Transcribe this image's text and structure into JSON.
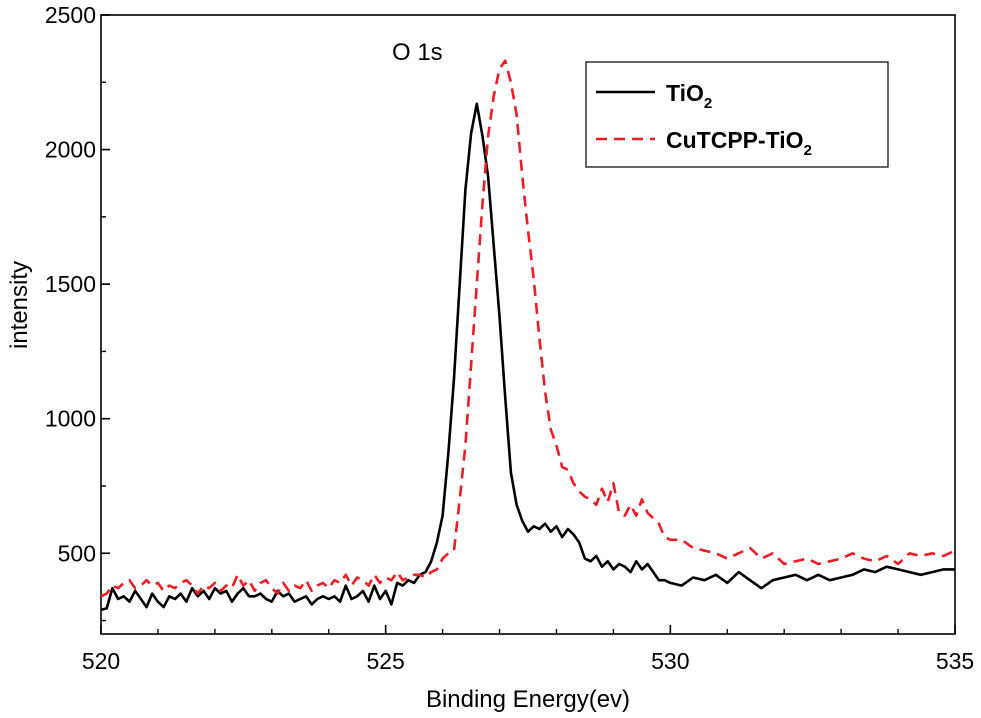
{
  "chart_data": {
    "type": "line",
    "title": "",
    "annotation": "O 1s",
    "xlabel": "Binding Energy(ev)",
    "ylabel": "intensity",
    "xlim": [
      520,
      535
    ],
    "ylim": [
      200,
      2500
    ],
    "xticks": [
      520,
      525,
      530,
      535
    ],
    "yticks": [
      500,
      1000,
      1500,
      2000,
      2500
    ],
    "legend_position": "top-right",
    "series": [
      {
        "name": "TiO2",
        "legend_main": "TiO",
        "legend_sub": "2",
        "color": "#000000",
        "dash": "solid",
        "x": [
          520.0,
          520.1,
          520.2,
          520.3,
          520.4,
          520.5,
          520.6,
          520.7,
          520.8,
          520.9,
          521.0,
          521.1,
          521.2,
          521.3,
          521.4,
          521.5,
          521.6,
          521.7,
          521.8,
          521.9,
          522.0,
          522.1,
          522.2,
          522.3,
          522.4,
          522.5,
          522.6,
          522.7,
          522.8,
          522.9,
          523.0,
          523.1,
          523.2,
          523.3,
          523.4,
          523.5,
          523.6,
          523.7,
          523.8,
          523.9,
          524.0,
          524.1,
          524.2,
          524.3,
          524.4,
          524.5,
          524.6,
          524.7,
          524.8,
          524.9,
          525.0,
          525.1,
          525.2,
          525.3,
          525.4,
          525.5,
          525.6,
          525.7,
          525.8,
          525.9,
          526.0,
          526.1,
          526.2,
          526.3,
          526.4,
          526.5,
          526.6,
          526.7,
          526.8,
          526.9,
          527.0,
          527.1,
          527.2,
          527.3,
          527.4,
          527.5,
          527.6,
          527.7,
          527.8,
          527.9,
          528.0,
          528.1,
          528.2,
          528.3,
          528.4,
          528.5,
          528.6,
          528.7,
          528.8,
          528.9,
          529.0,
          529.1,
          529.2,
          529.3,
          529.4,
          529.5,
          529.6,
          529.7,
          529.8,
          529.9,
          530.0,
          530.2,
          530.4,
          530.6,
          530.8,
          531.0,
          531.2,
          531.4,
          531.6,
          531.8,
          532.0,
          532.2,
          532.4,
          532.6,
          532.8,
          533.0,
          533.2,
          533.4,
          533.6,
          533.8,
          534.0,
          534.2,
          534.4,
          534.6,
          534.8,
          535.0
        ],
        "y": [
          290,
          295,
          370,
          330,
          340,
          320,
          360,
          330,
          300,
          350,
          320,
          300,
          340,
          330,
          350,
          320,
          370,
          340,
          360,
          330,
          370,
          350,
          360,
          320,
          350,
          370,
          340,
          340,
          350,
          330,
          320,
          360,
          340,
          350,
          320,
          330,
          340,
          310,
          330,
          340,
          330,
          340,
          320,
          380,
          330,
          340,
          360,
          320,
          380,
          330,
          360,
          310,
          390,
          380,
          400,
          390,
          420,
          430,
          470,
          540,
          640,
          870,
          1150,
          1500,
          1850,
          2060,
          2170,
          2050,
          1900,
          1640,
          1380,
          1080,
          800,
          680,
          620,
          580,
          600,
          590,
          610,
          580,
          600,
          560,
          590,
          570,
          540,
          480,
          470,
          490,
          450,
          470,
          440,
          460,
          450,
          430,
          470,
          440,
          460,
          430,
          400,
          400,
          390,
          380,
          410,
          400,
          420,
          390,
          430,
          400,
          370,
          400,
          410,
          420,
          400,
          420,
          400,
          410,
          420,
          440,
          430,
          450,
          440,
          430,
          420,
          430,
          440,
          440
        ]
      },
      {
        "name": "CuTCPP-TiO2",
        "legend_main": "CuTCPP-TiO",
        "legend_sub": "2",
        "color": "#ee1c25",
        "dash": "dashed",
        "x": [
          520.0,
          520.1,
          520.2,
          520.3,
          520.4,
          520.5,
          520.6,
          520.7,
          520.8,
          520.9,
          521.0,
          521.1,
          521.2,
          521.3,
          521.4,
          521.5,
          521.6,
          521.7,
          521.8,
          521.9,
          522.0,
          522.1,
          522.2,
          522.3,
          522.4,
          522.5,
          522.6,
          522.7,
          522.8,
          522.9,
          523.0,
          523.1,
          523.2,
          523.3,
          523.4,
          523.5,
          523.6,
          523.7,
          523.8,
          523.9,
          524.0,
          524.1,
          524.2,
          524.3,
          524.4,
          524.5,
          524.6,
          524.7,
          524.8,
          524.9,
          525.0,
          525.1,
          525.2,
          525.3,
          525.4,
          525.5,
          525.6,
          525.7,
          525.8,
          525.9,
          526.0,
          526.1,
          526.2,
          526.3,
          526.4,
          526.5,
          526.6,
          526.7,
          526.8,
          526.9,
          527.0,
          527.1,
          527.2,
          527.3,
          527.4,
          527.5,
          527.6,
          527.7,
          527.8,
          527.9,
          528.0,
          528.1,
          528.2,
          528.3,
          528.4,
          528.5,
          528.6,
          528.7,
          528.8,
          528.9,
          529.0,
          529.1,
          529.2,
          529.3,
          529.4,
          529.5,
          529.6,
          529.7,
          529.8,
          529.9,
          530.0,
          530.2,
          530.4,
          530.6,
          530.8,
          531.0,
          531.2,
          531.4,
          531.6,
          531.8,
          532.0,
          532.2,
          532.4,
          532.6,
          532.8,
          533.0,
          533.2,
          533.4,
          533.6,
          533.8,
          534.0,
          534.2,
          534.4,
          534.6,
          534.8,
          535.0
        ],
        "y": [
          340,
          350,
          380,
          370,
          390,
          400,
          370,
          380,
          400,
          380,
          390,
          360,
          380,
          370,
          390,
          400,
          380,
          350,
          380,
          370,
          390,
          360,
          380,
          370,
          420,
          380,
          400,
          360,
          390,
          400,
          370,
          350,
          390,
          360,
          380,
          370,
          400,
          360,
          380,
          390,
          370,
          400,
          390,
          420,
          380,
          410,
          400,
          380,
          420,
          390,
          410,
          400,
          430,
          400,
          410,
          420,
          420,
          410,
          430,
          440,
          480,
          500,
          510,
          700,
          900,
          1200,
          1500,
          1800,
          2050,
          2200,
          2300,
          2330,
          2250,
          2130,
          1900,
          1700,
          1520,
          1300,
          1100,
          960,
          900,
          820,
          810,
          760,
          730,
          710,
          700,
          680,
          740,
          690,
          760,
          650,
          640,
          680,
          640,
          700,
          650,
          630,
          610,
          560,
          550,
          550,
          520,
          510,
          500,
          480,
          500,
          520,
          480,
          500,
          460,
          470,
          480,
          460,
          470,
          480,
          500,
          480,
          470,
          490,
          460,
          500,
          490,
          500,
          490,
          510
        ]
      }
    ]
  }
}
